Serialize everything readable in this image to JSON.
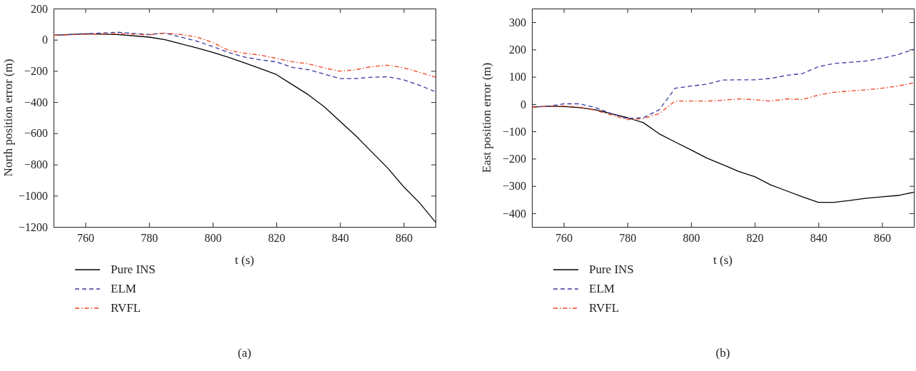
{
  "chart_data": [
    {
      "type": "line",
      "xlabel": "t (s)",
      "ylabel": "North position error (m)",
      "annotations": [
        "(a)"
      ],
      "xlim": [
        750,
        870
      ],
      "xticks": [
        760,
        780,
        800,
        820,
        840,
        860
      ],
      "ylim": [
        -1200,
        200
      ],
      "yticks": [
        -1200,
        -1000,
        -800,
        -600,
        -400,
        -200,
        0,
        200
      ],
      "legend": "bottom left",
      "grid": false,
      "x": [
        750,
        760,
        770,
        780,
        785,
        790,
        795,
        800,
        805,
        810,
        815,
        820,
        825,
        830,
        835,
        840,
        845,
        850,
        855,
        860,
        865,
        870
      ],
      "series": [
        {
          "name": "Pure INS",
          "color": "#000000",
          "line_style": "solid",
          "values": [
            29,
            38,
            34,
            17,
            0,
            -26,
            -52,
            -81,
            -113,
            -148,
            -185,
            -223,
            -288,
            -352,
            -429,
            -523,
            -617,
            -720,
            -823,
            -943,
            -1046,
            -1170
          ]
        },
        {
          "name": "ELM",
          "color": "#3a3aa0",
          "line_style": "dashed",
          "values": [
            29,
            38,
            48,
            34,
            43,
            17,
            -9,
            -43,
            -82,
            -111,
            -129,
            -142,
            -177,
            -192,
            -220,
            -249,
            -249,
            -240,
            -237,
            -257,
            -292,
            -334
          ]
        },
        {
          "name": "RVFL",
          "color": "#f04020",
          "line_style": "dashdot",
          "values": [
            28,
            35,
            40,
            31,
            43,
            34,
            17,
            -17,
            -69,
            -86,
            -98,
            -120,
            -141,
            -154,
            -180,
            -202,
            -192,
            -172,
            -163,
            -180,
            -209,
            -240
          ]
        }
      ]
    },
    {
      "type": "line",
      "xlabel": "t (s)",
      "ylabel": "East position error (m)",
      "annotations": [
        "(b)"
      ],
      "xlim": [
        750,
        870
      ],
      "xticks": [
        760,
        780,
        800,
        820,
        840,
        860
      ],
      "ylim": [
        -450,
        350
      ],
      "yticks": [
        -400,
        -300,
        -200,
        -100,
        0,
        100,
        200,
        300
      ],
      "legend": "bottom left",
      "grid": false,
      "x": [
        750,
        755,
        760,
        765,
        770,
        775,
        780,
        785,
        790,
        795,
        800,
        805,
        810,
        815,
        820,
        825,
        830,
        835,
        840,
        845,
        850,
        855,
        860,
        865,
        870
      ],
      "series": [
        {
          "name": "Pure INS",
          "color": "#000000",
          "line_style": "solid",
          "values": [
            -11,
            -8,
            -9,
            -13,
            -21,
            -35,
            -50,
            -68,
            -109,
            -139,
            -168,
            -198,
            -222,
            -247,
            -266,
            -296,
            -318,
            -340,
            -360,
            -360,
            -353,
            -345,
            -340,
            -335,
            -323
          ]
        },
        {
          "name": "ELM",
          "color": "#3a3aa0",
          "line_style": "dashed",
          "values": [
            -9,
            -9,
            1,
            1,
            -13,
            -35,
            -53,
            -50,
            -21,
            58,
            66,
            73,
            88,
            89,
            89,
            94,
            105,
            112,
            137,
            149,
            153,
            158,
            168,
            181,
            201
          ]
        },
        {
          "name": "RVFL",
          "color": "#f04020",
          "line_style": "dashdot",
          "values": [
            -11,
            -9,
            -7,
            -11,
            -23,
            -40,
            -57,
            -53,
            -35,
            11,
            11,
            11,
            14,
            19,
            16,
            11,
            19,
            17,
            33,
            43,
            48,
            52,
            58,
            66,
            78
          ]
        }
      ]
    }
  ]
}
